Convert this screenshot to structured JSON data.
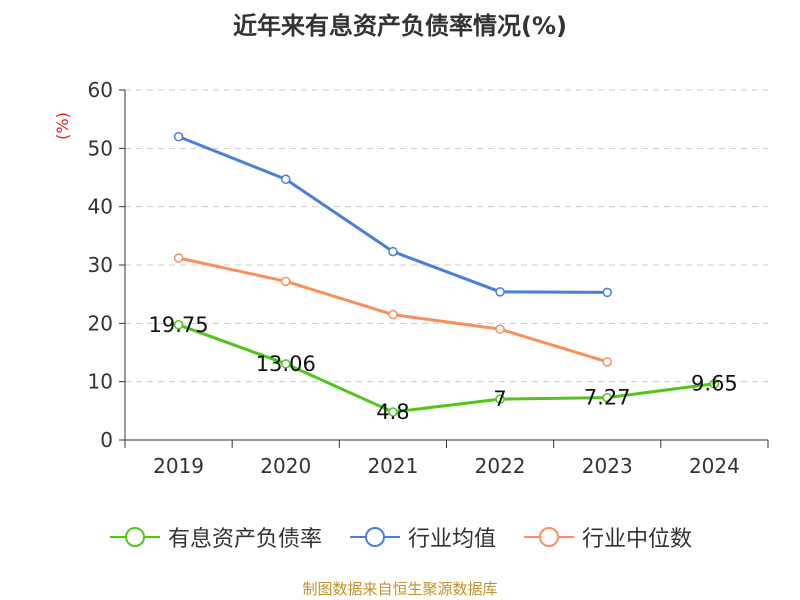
{
  "chart_data": {
    "type": "line",
    "title": "近年来有息资产负债率情况(%)",
    "ylabel": "(%)",
    "xlabel": "",
    "categories": [
      "2019",
      "2020",
      "2021",
      "2022",
      "2023",
      "2024"
    ],
    "ylim": [
      0,
      60
    ],
    "yticks": [
      0,
      10,
      20,
      30,
      40,
      50,
      60
    ],
    "grid": true,
    "legend_position": "bottom",
    "series": [
      {
        "name": "有息资产负债率",
        "color": "#52c41a",
        "values": [
          19.75,
          13.06,
          4.8,
          7,
          7.27,
          9.65
        ],
        "labels": [
          "19.75",
          "13.06",
          "4.8",
          "7",
          "7.27",
          "9.65"
        ]
      },
      {
        "name": "行业均值",
        "color": "#4a7fd8",
        "values": [
          52.0,
          44.7,
          32.3,
          25.4,
          25.3,
          null
        ]
      },
      {
        "name": "行业中位数",
        "color": "#f7905c",
        "values": [
          31.2,
          27.2,
          21.5,
          19.0,
          13.4,
          null
        ]
      }
    ]
  },
  "source": "制图数据来自恒生聚源数据库"
}
